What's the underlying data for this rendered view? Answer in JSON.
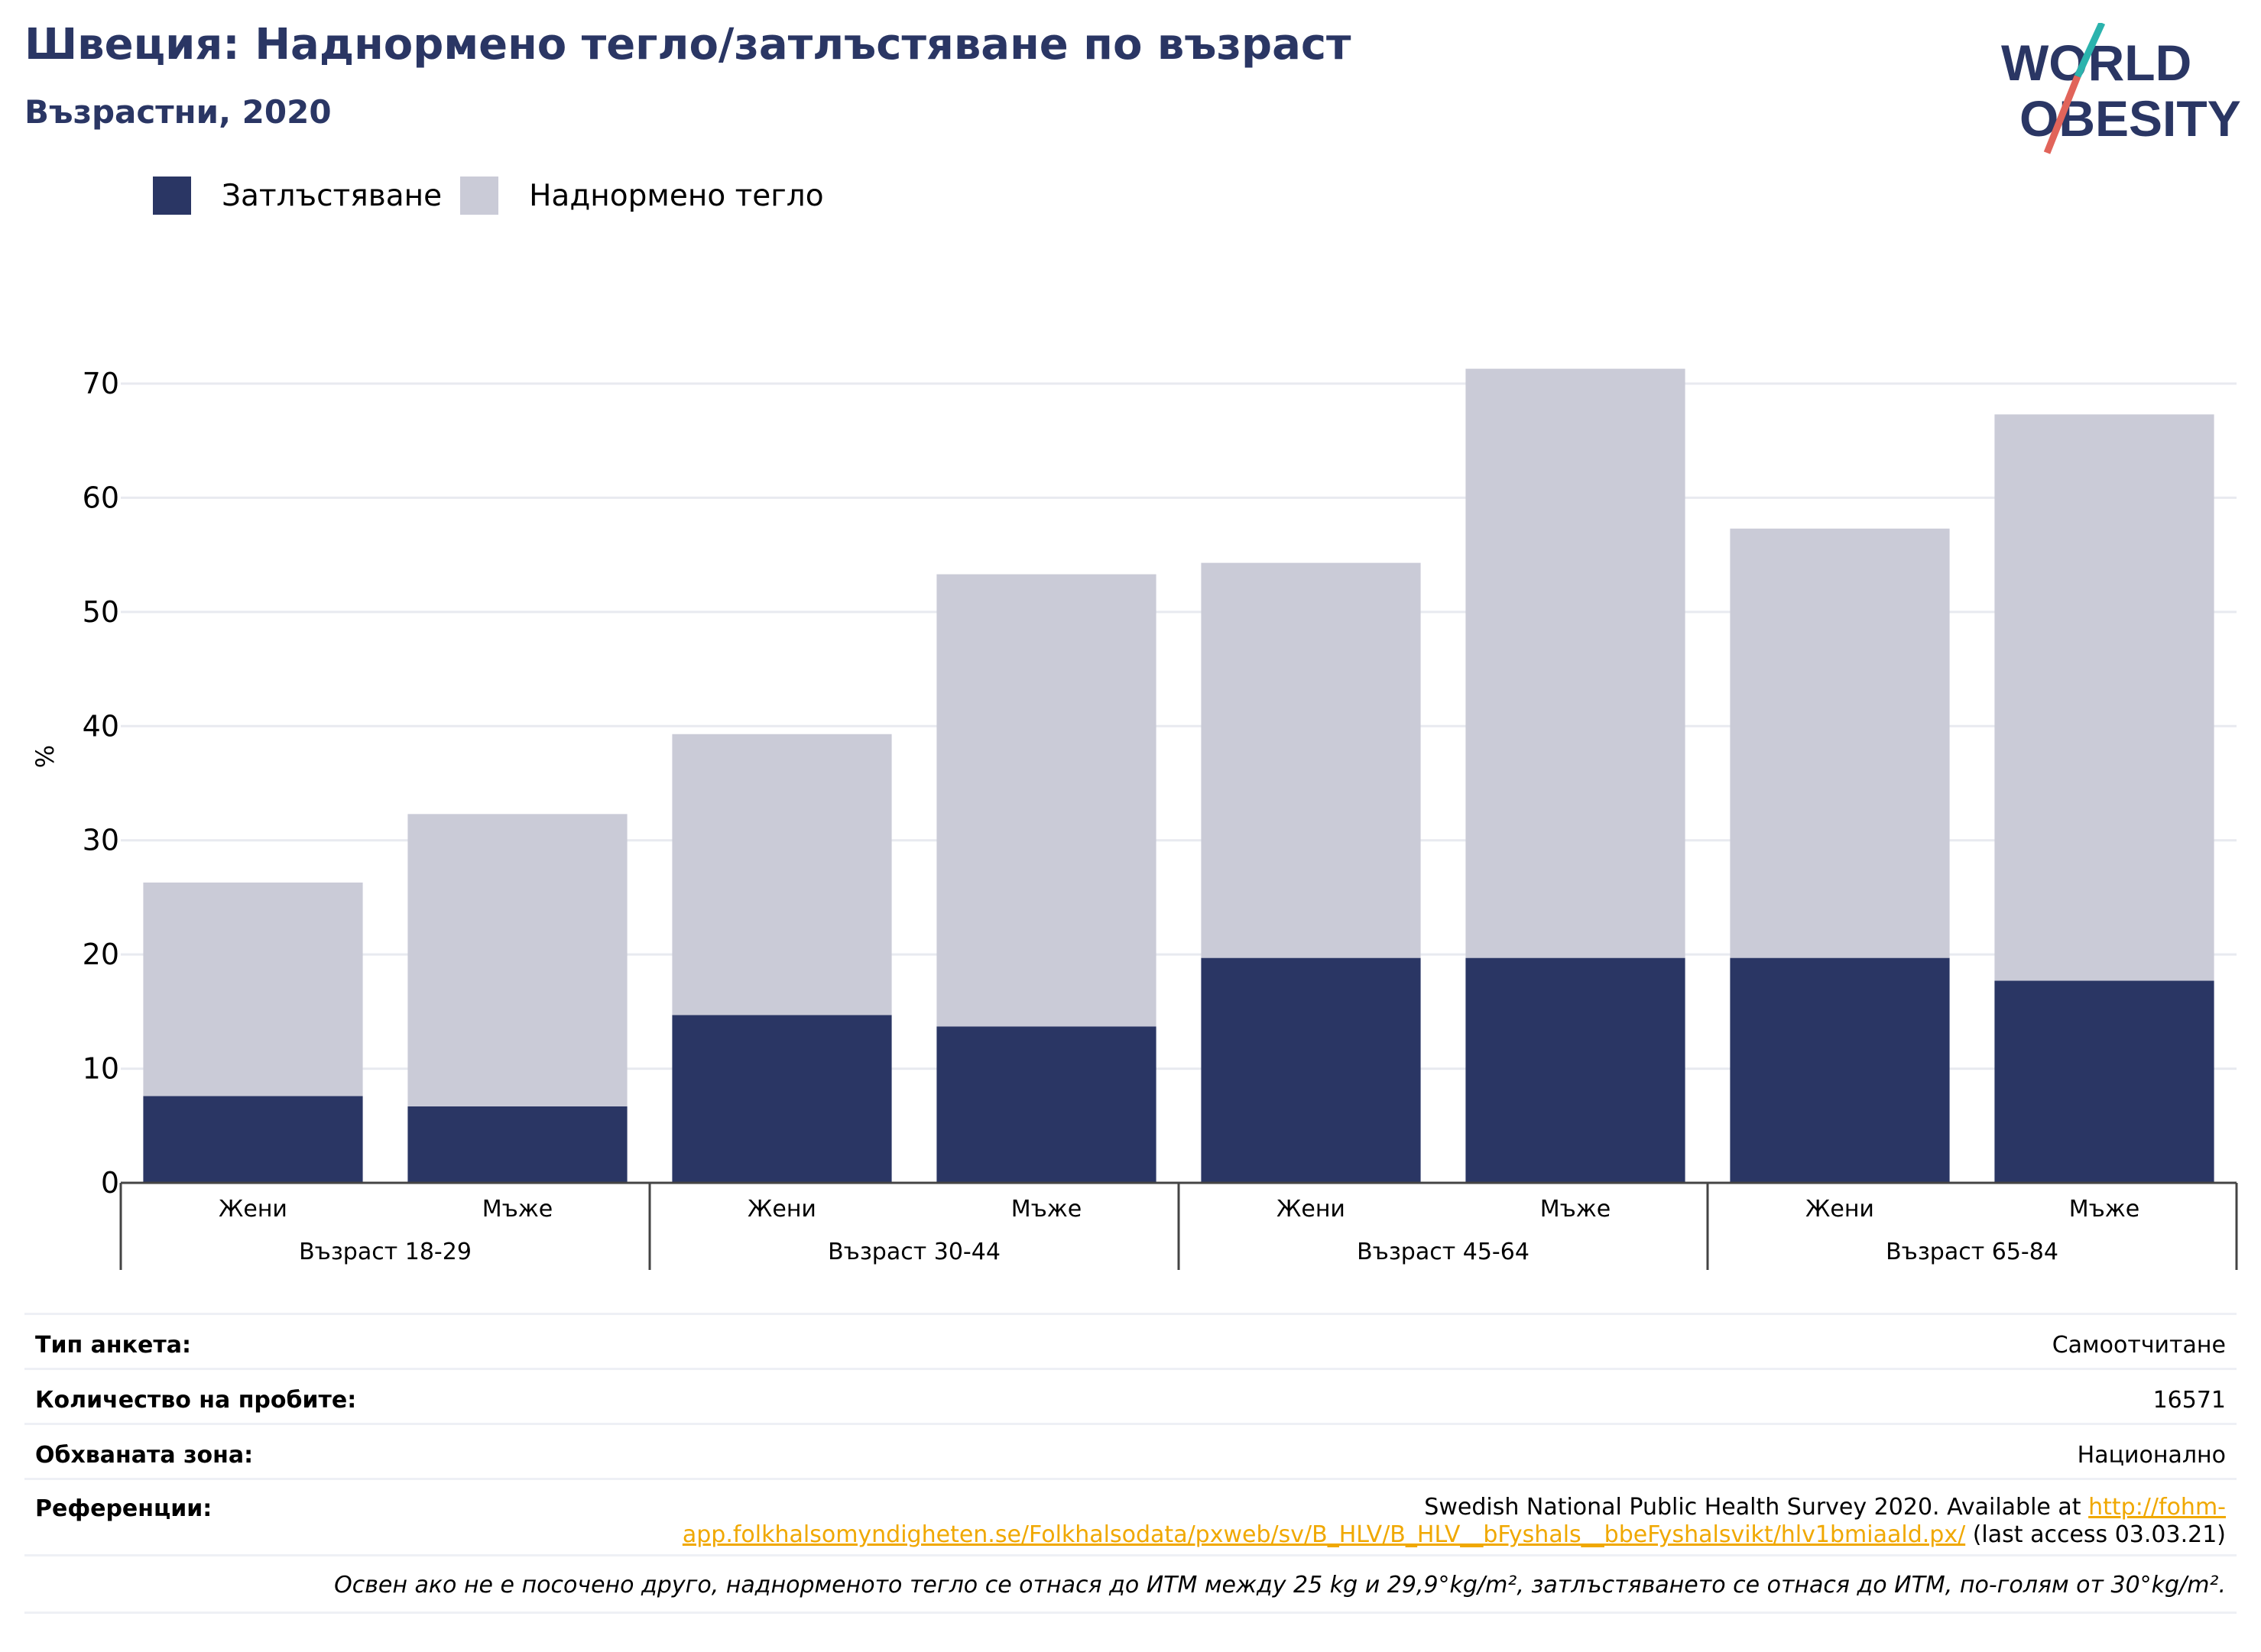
{
  "title": "Швеция: Наднормено тегло/затлъстяване по възраст",
  "subtitle": "Възрастни, 2020",
  "logo": {
    "line1": "WORLD",
    "line2": "OBESITY"
  },
  "legend": [
    {
      "label": "Затлъстяване",
      "color": "#2a3664"
    },
    {
      "label": "Наднормено тегло",
      "color": "#cacbd7"
    }
  ],
  "chart_data": {
    "type": "bar",
    "stacked": true,
    "ylabel": "%",
    "ylim": [
      0,
      70
    ],
    "yticks": [
      0,
      10,
      20,
      30,
      40,
      50,
      60,
      70
    ],
    "grid": true,
    "groups": [
      "Възраст 18-29",
      "Възраст 30-44",
      "Възраст 45-64",
      "Възраст 65-84"
    ],
    "categories": [
      "Жени",
      "Мъже",
      "Жени",
      "Мъже",
      "Жени",
      "Мъже",
      "Жени",
      "Мъже"
    ],
    "series": [
      {
        "name": "Затлъстяване",
        "color": "#2a3664",
        "values": [
          7.6,
          6.7,
          14.7,
          13.7,
          19.7,
          19.7,
          19.7,
          17.7
        ]
      },
      {
        "name": "Наднормено тегло",
        "color": "#cacbd7",
        "values": [
          18.7,
          25.6,
          24.6,
          39.6,
          34.6,
          51.6,
          37.6,
          49.6
        ]
      }
    ]
  },
  "info": {
    "survey_type_label": "Тип анкета:",
    "survey_type_value": "Самоотчитане",
    "sample_label": "Количество на пробите:",
    "sample_value": "16571",
    "area_label": "Обхваната зона:",
    "area_value": "Национално",
    "ref_label": "Референции:",
    "ref_text": "Swedish National Public Health Survey 2020. Available at ",
    "ref_link_1": "http://fohm-",
    "ref_link_2": "app.folkhalsomyndigheten.se/Folkhalsodata/pxweb/sv/B_HLV/B_HLV__bFyshals__bbeFyshalsvikt/hlv1bmiaald.px/",
    "ref_suffix": " (last access 03.03.21)",
    "note": "Освен ако не е посочено друго, наднорменото тегло се отнася до ИТМ между 25 kg и 29,9°kg/m², затлъстяването се отнася до ИТМ, по-голям от 30°kg/m²."
  }
}
